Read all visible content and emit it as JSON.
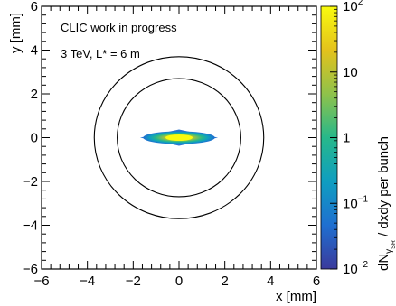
{
  "chart_data": {
    "type": "heatmap",
    "title": "",
    "xlabel": "x [mm]",
    "ylabel": "y [mm]",
    "xlim": [
      -6,
      6
    ],
    "ylim": [
      -6,
      6
    ],
    "x_ticks": [
      "−6",
      "−4",
      "−2",
      "0",
      "2",
      "4",
      "6"
    ],
    "y_ticks": [
      "−6",
      "−4",
      "−2",
      "0",
      "2",
      "4",
      "6"
    ],
    "annotations": [
      "CLIC work in progress",
      "3 TeV, L* = 6 m"
    ],
    "colorbar": {
      "label_main": "dN",
      "label_sub": "γ",
      "label_subsub": "SR",
      "label_rest": " / dxdy per bunch",
      "scale": "log",
      "range": [
        0.01,
        100
      ],
      "ticks": [
        {
          "value": 100,
          "base": "10",
          "exp": "2"
        },
        {
          "value": 10,
          "base": "10",
          "exp": ""
        },
        {
          "value": 1,
          "base": "1",
          "exp": ""
        },
        {
          "value": 0.1,
          "base": "10",
          "exp": "−1"
        },
        {
          "value": 0.01,
          "base": "10",
          "exp": "−2"
        }
      ],
      "colors": [
        "#3b3a9c",
        "#1f6fd0",
        "#0f9ec0",
        "#27b88a",
        "#8fc24a",
        "#e4c21c",
        "#f9fb0e"
      ]
    },
    "circles": [
      {
        "name": "",
        "cx": 0,
        "cy": 0,
        "r": 2.7
      },
      {
        "name": "",
        "cx": 0,
        "cy": 0,
        "r": 3.7
      }
    ],
    "beam_spot": {
      "center": [
        0,
        0
      ],
      "half_width_x": 1.7,
      "half_height_y": 0.12,
      "peak_value": 100
    },
    "grid": false,
    "legend": "none"
  }
}
